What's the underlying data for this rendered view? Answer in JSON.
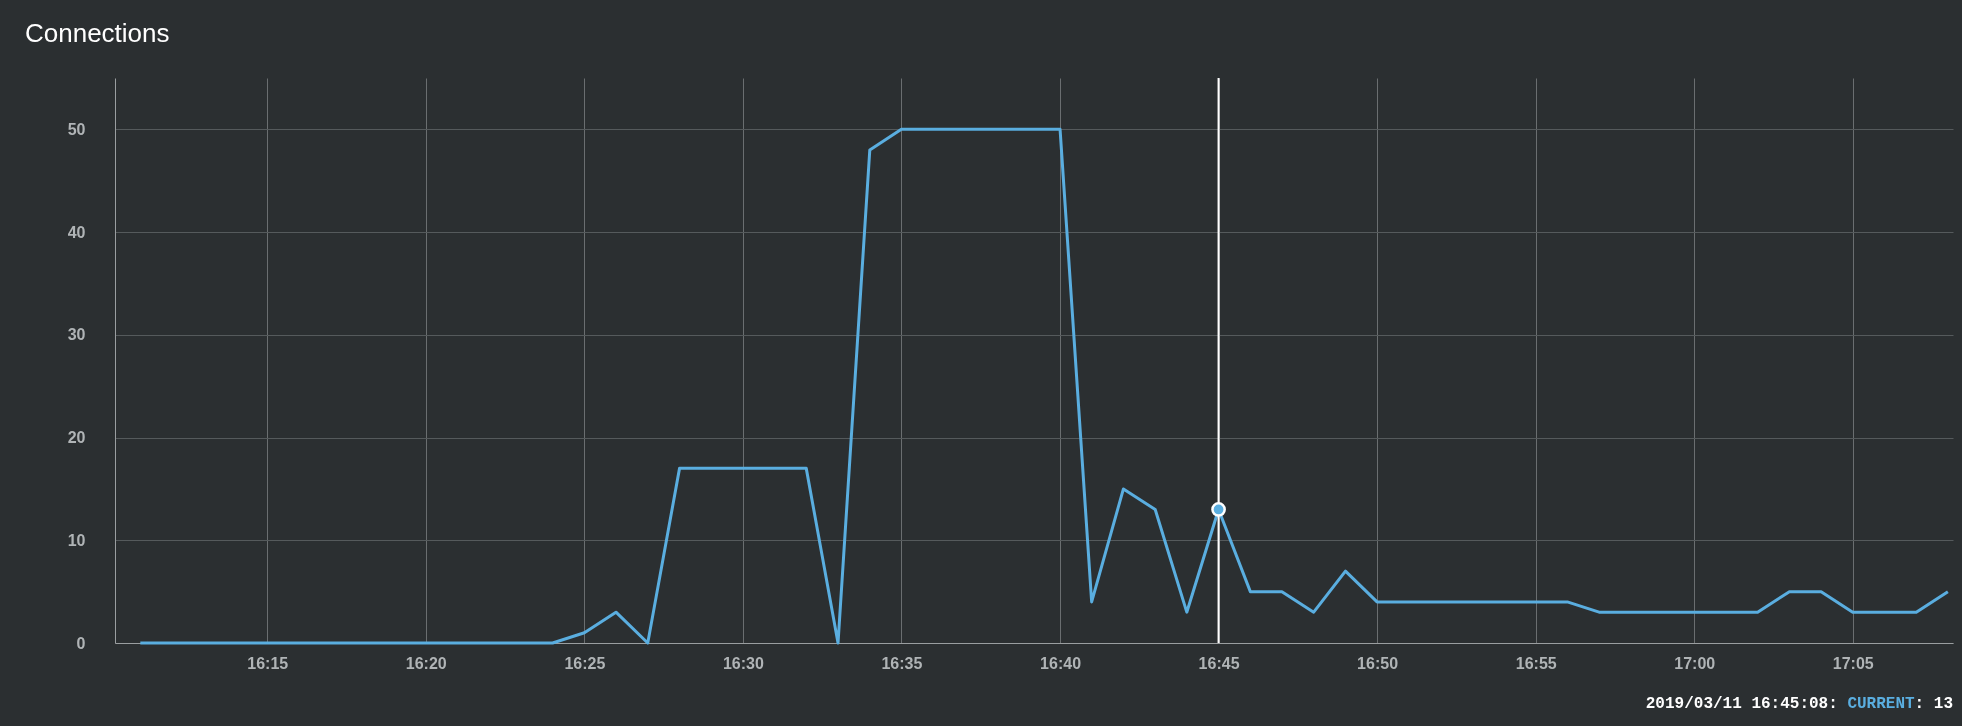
{
  "chart_data": {
    "type": "line",
    "title": "Connections",
    "x": [
      16.1833,
      16.2,
      16.2167,
      16.2333,
      16.25,
      16.2667,
      16.2833,
      16.3,
      16.3167,
      16.3333,
      16.35,
      16.3667,
      16.3833,
      16.4,
      16.4167,
      16.4333,
      16.45,
      16.4667,
      16.4833,
      16.5,
      16.5167,
      16.5333,
      16.55,
      16.5667,
      16.5833,
      16.6,
      16.6167,
      16.6333,
      16.65,
      16.6667,
      16.6833,
      16.7,
      16.7167,
      16.7333,
      16.75,
      16.7667,
      16.7833,
      16.8,
      16.8167,
      16.8333,
      16.85,
      16.8667,
      16.8833,
      16.9,
      16.9167,
      16.9333,
      16.95,
      16.9667,
      16.9833,
      17.0,
      17.0167,
      17.0333,
      17.05,
      17.0667,
      17.0833,
      17.1,
      17.1167,
      17.1333
    ],
    "series": [
      {
        "name": "CURRENT",
        "color": "#5aaee0",
        "values": [
          0,
          0,
          0,
          0,
          0,
          0,
          0,
          0,
          0,
          0,
          0,
          0,
          0,
          0,
          1,
          3,
          0,
          17,
          17,
          17,
          17,
          17,
          0,
          48,
          50,
          50,
          50,
          50,
          50,
          50,
          4,
          15,
          13,
          3,
          13,
          5,
          5,
          3,
          7,
          4,
          4,
          4,
          4,
          4,
          4,
          4,
          3,
          3,
          3,
          3,
          3,
          3,
          5,
          5,
          3,
          3,
          3,
          5
        ]
      }
    ],
    "xlim": [
      16.17,
      17.136
    ],
    "xticks": [
      {
        "value": 16.25,
        "label": "16:15"
      },
      {
        "value": 16.3333,
        "label": "16:20"
      },
      {
        "value": 16.4167,
        "label": "16:25"
      },
      {
        "value": 16.5,
        "label": "16:30"
      },
      {
        "value": 16.5833,
        "label": "16:35"
      },
      {
        "value": 16.6667,
        "label": "16:40"
      },
      {
        "value": 16.75,
        "label": "16:45"
      },
      {
        "value": 16.8333,
        "label": "16:50"
      },
      {
        "value": 16.9167,
        "label": "16:55"
      },
      {
        "value": 17.0,
        "label": "17:00"
      },
      {
        "value": 17.0833,
        "label": "17:05"
      }
    ],
    "ylim": [
      0,
      55
    ],
    "yticks": [
      0,
      10,
      20,
      30,
      40,
      50
    ],
    "grid": true,
    "legend": false,
    "marker": "none",
    "line_style": "solid",
    "ref_lines": [
      {
        "axis": "x",
        "value": 16.75,
        "color": "#ffffff"
      }
    ],
    "annotations": [
      "2019/03/11 16:45:08:",
      ": 13"
    ]
  }
}
